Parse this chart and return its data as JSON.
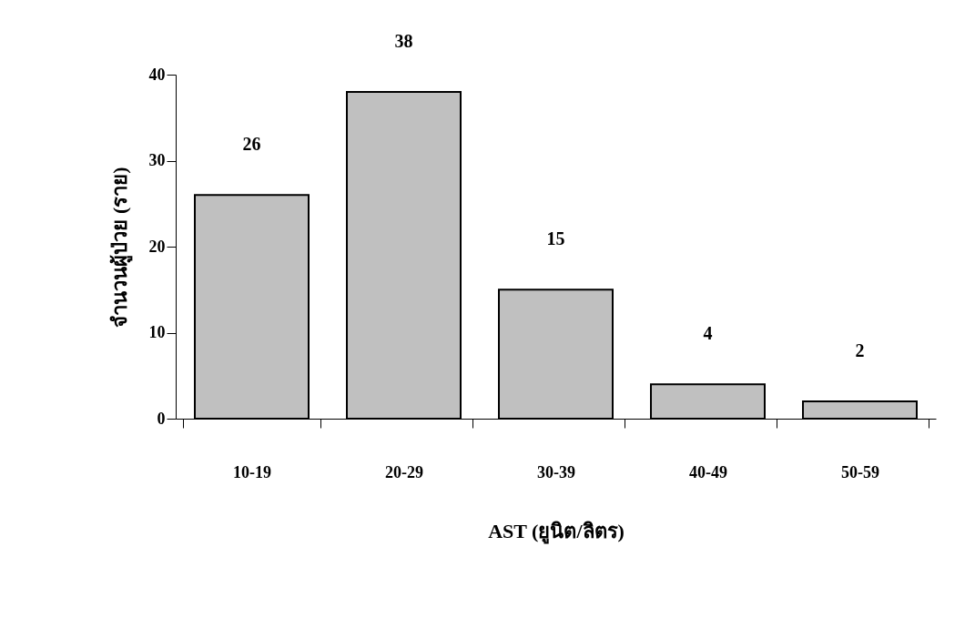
{
  "chart_data": {
    "type": "bar",
    "xlabel": "AST (ยูนิต/ลิตร)",
    "ylabel": "จำนวนผู้ป่วย (ราย)",
    "categories": [
      "10-19",
      "20-29",
      "30-39",
      "40-49",
      "50-59"
    ],
    "values": [
      26,
      38,
      15,
      4,
      2
    ],
    "color": "#c0c0c0",
    "ylim": [
      0,
      40
    ],
    "yticks": [
      0,
      10,
      20,
      30,
      40
    ],
    "grid": false,
    "data_labels": true
  }
}
